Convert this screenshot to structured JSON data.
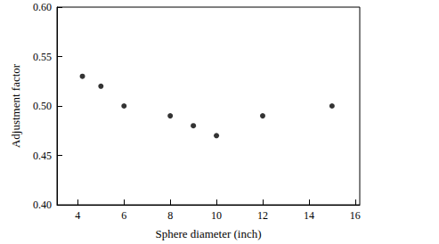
{
  "chart_data": {
    "type": "scatter",
    "x_label": "Sphere diameter (inch)",
    "y_label": "Adjustment factor",
    "x": [
      4.2,
      5,
      6,
      8,
      9,
      10,
      12,
      15
    ],
    "values": [
      0.53,
      0.52,
      0.5,
      0.49,
      0.48,
      0.47,
      0.49,
      0.5
    ],
    "color": "#000000",
    "marker": "circle",
    "xlim": [
      3.1,
      16.2
    ],
    "xticks": [
      4,
      6,
      8,
      10,
      12,
      14,
      16
    ],
    "ylim": [
      0.4,
      0.6
    ],
    "yticks": [
      {
        "value": 0.4,
        "label": "0.40"
      },
      {
        "value": 0.45,
        "label": "0.45"
      },
      {
        "value": 0.5,
        "label": "0.50"
      },
      {
        "value": 0.55,
        "label": "0.55"
      },
      {
        "value": 0.6,
        "label": "0.60"
      }
    ],
    "grid": false
  }
}
